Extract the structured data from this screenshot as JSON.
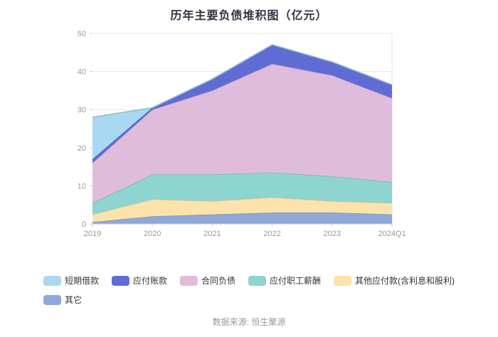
{
  "chart_data": {
    "type": "area",
    "stacked": true,
    "title": "历年主要负债堆积图（亿元）",
    "xlabel": "",
    "ylabel": "",
    "categories": [
      "2019",
      "2020",
      "2021",
      "2022",
      "2023",
      "2024Q1"
    ],
    "ylim": [
      0,
      50
    ],
    "yticks": [
      0,
      10,
      20,
      30,
      40,
      50
    ],
    "grid": true,
    "legend_position": "bottom",
    "series": [
      {
        "name": "其它",
        "color": "#8fa8d8",
        "values": [
          0.5,
          2,
          2.5,
          3,
          3,
          2.5
        ]
      },
      {
        "name": "其他应付款(含利息和股利)",
        "color": "#fbe3ab",
        "values": [
          2,
          4.5,
          3.5,
          4,
          3,
          3
        ]
      },
      {
        "name": "应付职工薪酬",
        "color": "#8ed4d0",
        "values": [
          3,
          6.5,
          7,
          6.5,
          6.5,
          5.5
        ]
      },
      {
        "name": "合同负债",
        "color": "#e0bcdc",
        "values": [
          10.5,
          17,
          22,
          28.5,
          26.5,
          22
        ]
      },
      {
        "name": "应付账款",
        "color": "#5f6cd4",
        "values": [
          1,
          0.5,
          3,
          5,
          3.5,
          3.5
        ]
      },
      {
        "name": "短期借款",
        "color": "#a9d8f2",
        "values": [
          11,
          0,
          0,
          0,
          0,
          0
        ]
      }
    ],
    "legend_rows": [
      [
        "短期借款",
        "应付账款",
        "合同负债",
        "应付职工薪酬",
        "其他应付款(含利息和股利)"
      ],
      [
        "其它"
      ]
    ]
  },
  "footer": {
    "source": "数据来源: 恒生聚源"
  }
}
